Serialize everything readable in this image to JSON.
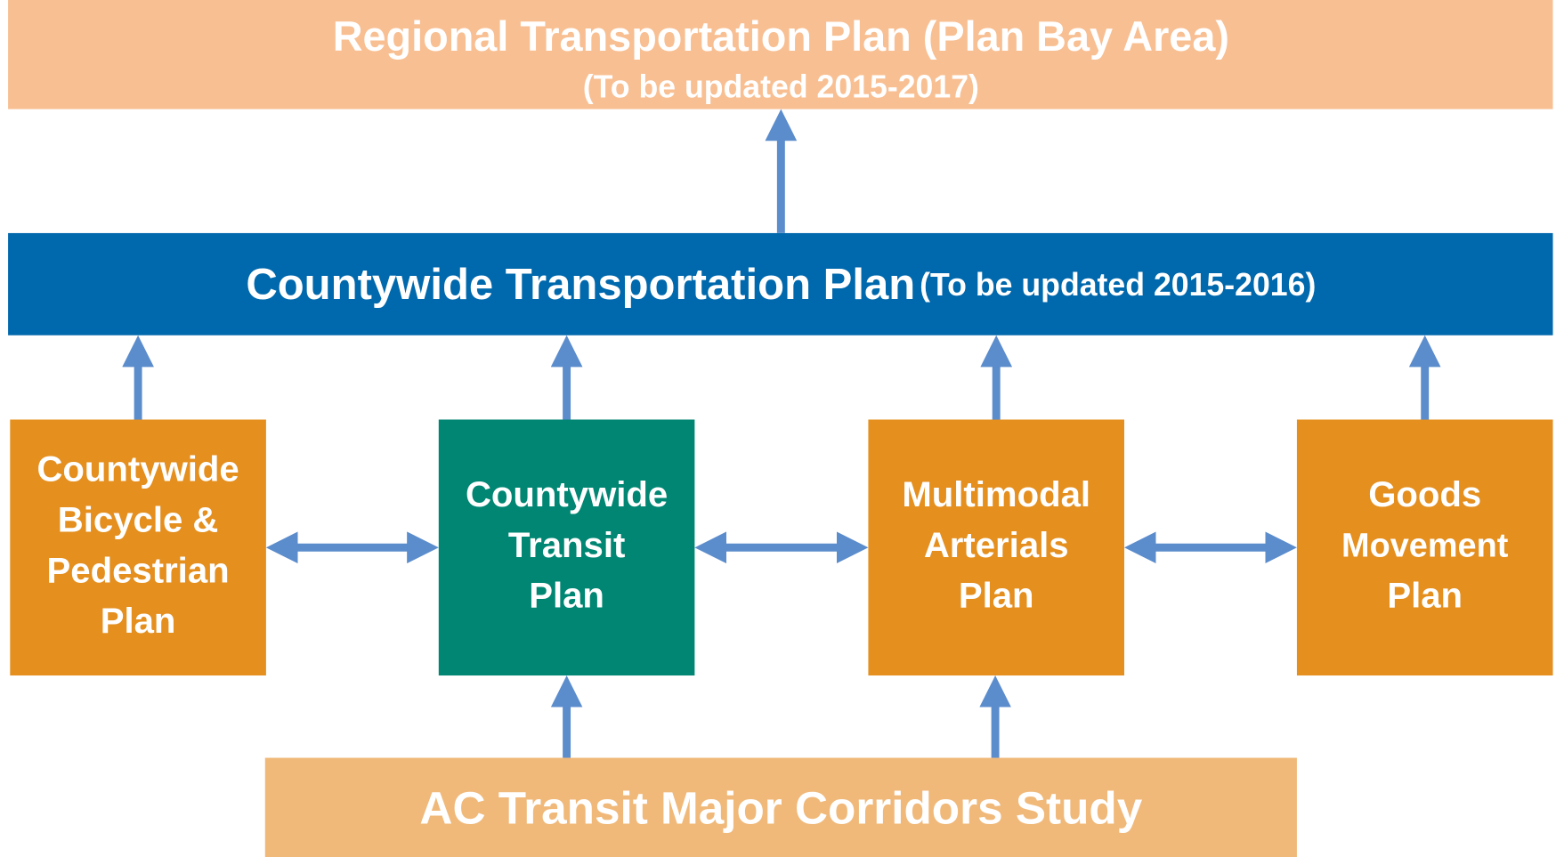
{
  "regional": {
    "title": "Regional Transportation Plan (Plan Bay Area)",
    "subtitle": "(To be updated 2015-2017)"
  },
  "countywide": {
    "title": "Countywide Transportation Plan",
    "subtitle": "(To be updated 2015-2016)"
  },
  "plans": [
    {
      "lines": [
        "Countywide",
        "Bicycle &",
        "Pedestrian",
        "Plan"
      ]
    },
    {
      "lines": [
        "Countywide",
        "Transit",
        "Plan"
      ]
    },
    {
      "lines": [
        "Multimodal",
        "Arterials",
        "Plan"
      ]
    },
    {
      "lines": [
        "Goods",
        "Movement",
        "Plan"
      ]
    }
  ],
  "study": {
    "title": "AC Transit Major Corridors Study"
  }
}
